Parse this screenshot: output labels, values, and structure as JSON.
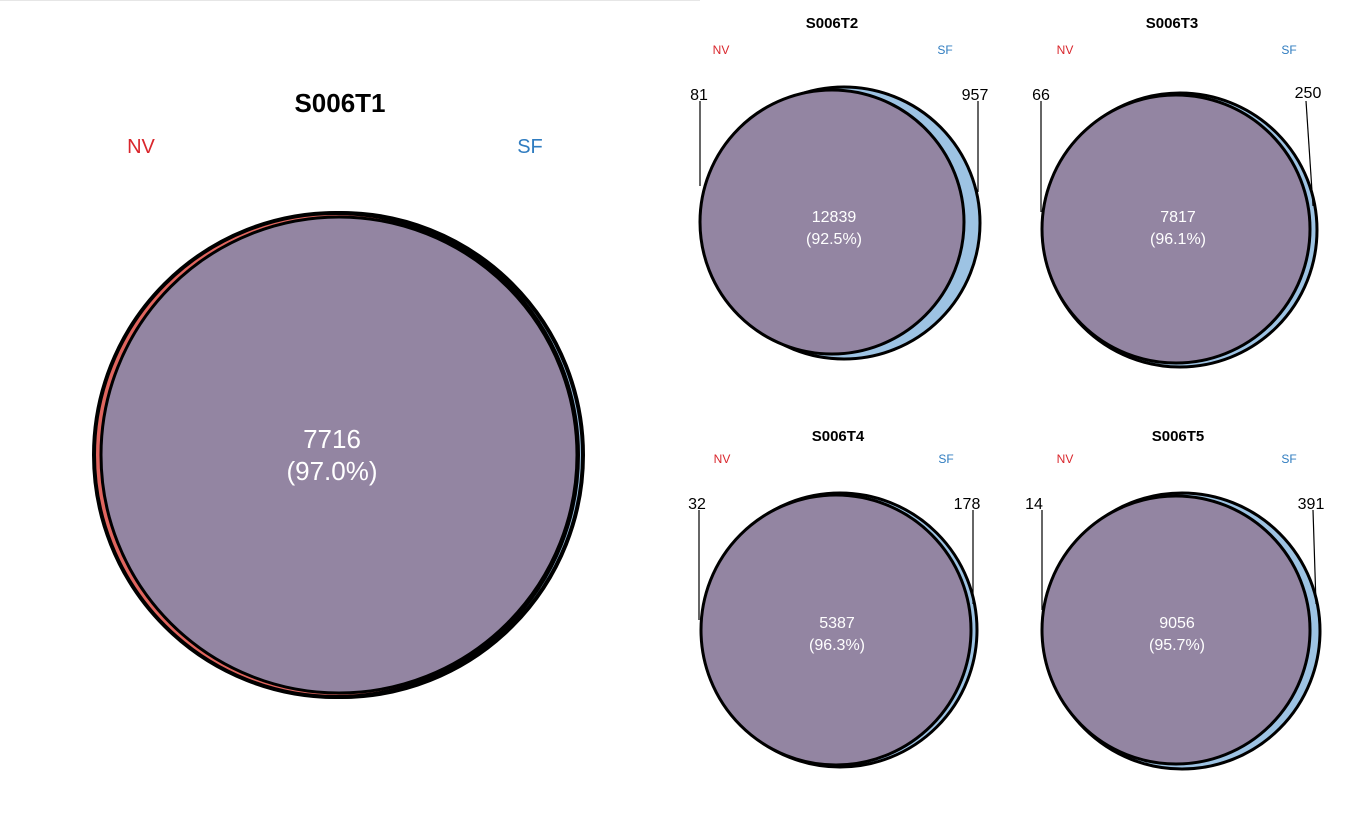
{
  "venn": [
    {
      "title": "S006T1",
      "left_label": "NV",
      "right_label": "SF",
      "left_only": "",
      "right_only": "",
      "intersection": "7716",
      "percent": "(97.0%)"
    },
    {
      "title": "S006T2",
      "left_label": "NV",
      "right_label": "SF",
      "left_only": "81",
      "right_only": "957",
      "intersection": "12839",
      "percent": "(92.5%)"
    },
    {
      "title": "S006T3",
      "left_label": "NV",
      "right_label": "SF",
      "left_only": "66",
      "right_only": "250",
      "intersection": "7817",
      "percent": "(96.1%)"
    },
    {
      "title": "S006T4",
      "left_label": "NV",
      "right_label": "SF",
      "left_only": "32",
      "right_only": "178",
      "intersection": "5387",
      "percent": "(96.3%)"
    },
    {
      "title": "S006T5",
      "left_label": "NV",
      "right_label": "SF",
      "left_only": "14",
      "right_only": "391",
      "intersection": "9056",
      "percent": "(95.7%)"
    }
  ],
  "colors": {
    "nv_label": "#d9262c",
    "sf_label": "#2f7cc0",
    "nv_fill": "#e0655e",
    "sf_fill": "#9dc3e3",
    "overlap_fill": "#9385a2",
    "outline": "#000000",
    "count_text": "#ffffff"
  }
}
